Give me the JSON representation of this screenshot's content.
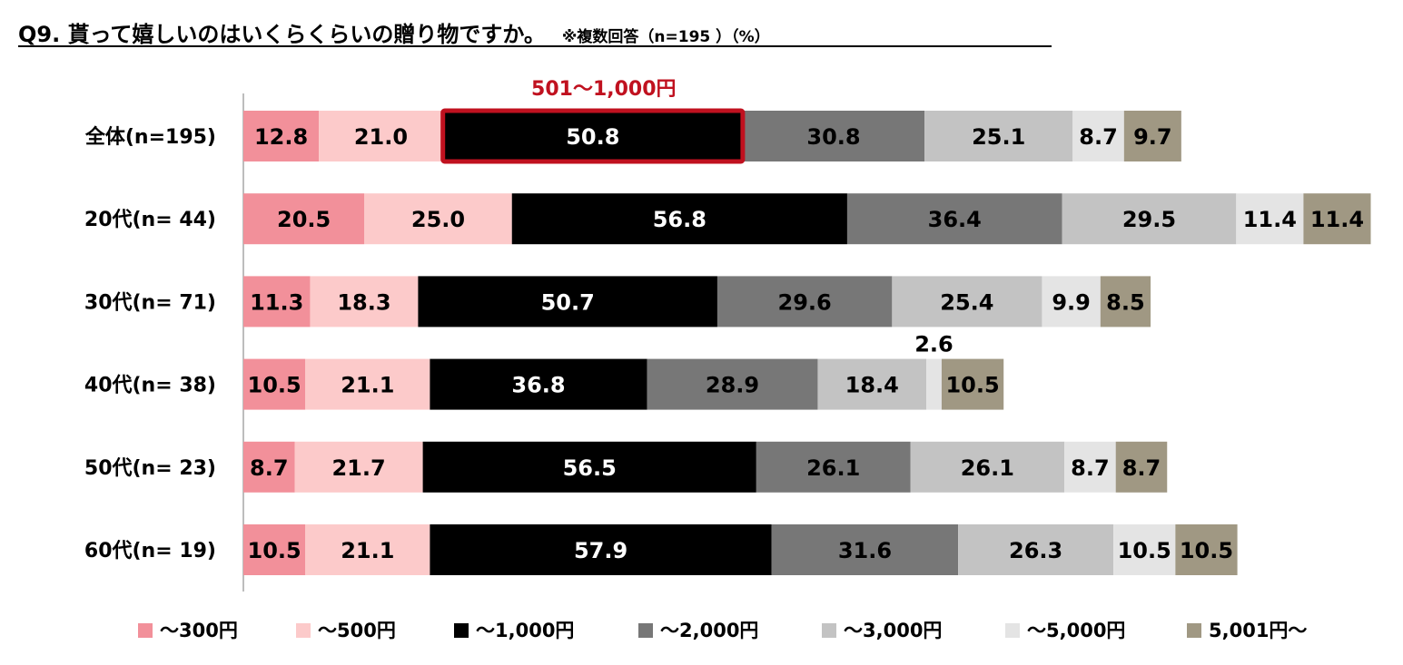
{
  "title": "Q9. 貰って嬉しいのはいくらくらいの贈り物ですか。",
  "subtitle": "※複数回答（n=195 ）（%）",
  "chart_data": {
    "type": "bar",
    "orientation": "horizontal",
    "stacked": true,
    "categories": [
      "全体(n=195)",
      "20代(n=  44)",
      "30代(n=  71)",
      "40代(n=  38)",
      "50代(n=  23)",
      "60代(n=  19)"
    ],
    "series": [
      {
        "name": "～300円",
        "color": "#f2909a",
        "values": [
          12.8,
          20.5,
          11.3,
          10.5,
          8.7,
          10.5
        ]
      },
      {
        "name": "～500円",
        "color": "#fccaca",
        "values": [
          21.0,
          25.0,
          18.3,
          21.1,
          21.7,
          21.1
        ]
      },
      {
        "name": "～1,000円",
        "color": "#000000",
        "values": [
          50.8,
          56.8,
          50.7,
          36.8,
          56.5,
          57.9
        ]
      },
      {
        "name": "～2,000円",
        "color": "#777777",
        "values": [
          30.8,
          36.4,
          29.6,
          28.9,
          26.1,
          31.6
        ]
      },
      {
        "name": "～3,000円",
        "color": "#c3c3c3",
        "values": [
          25.1,
          29.5,
          25.4,
          18.4,
          26.1,
          26.3
        ]
      },
      {
        "name": "～5,000円",
        "color": "#e4e4e4",
        "values": [
          8.7,
          11.4,
          9.9,
          2.6,
          8.7,
          10.5
        ]
      },
      {
        "name": "5,001円～",
        "color": "#a09883",
        "values": [
          9.7,
          11.4,
          8.5,
          10.5,
          8.7,
          10.5
        ]
      }
    ],
    "label_colors": [
      "#000000",
      "#000000",
      "#ffffff",
      "#000000",
      "#000000",
      "#000000",
      "#000000"
    ],
    "highlight": {
      "label": "501～1,000円",
      "category_index": 0,
      "series_index": 2,
      "color": "#c0111f"
    },
    "legend_position": "bottom",
    "grid": false
  }
}
